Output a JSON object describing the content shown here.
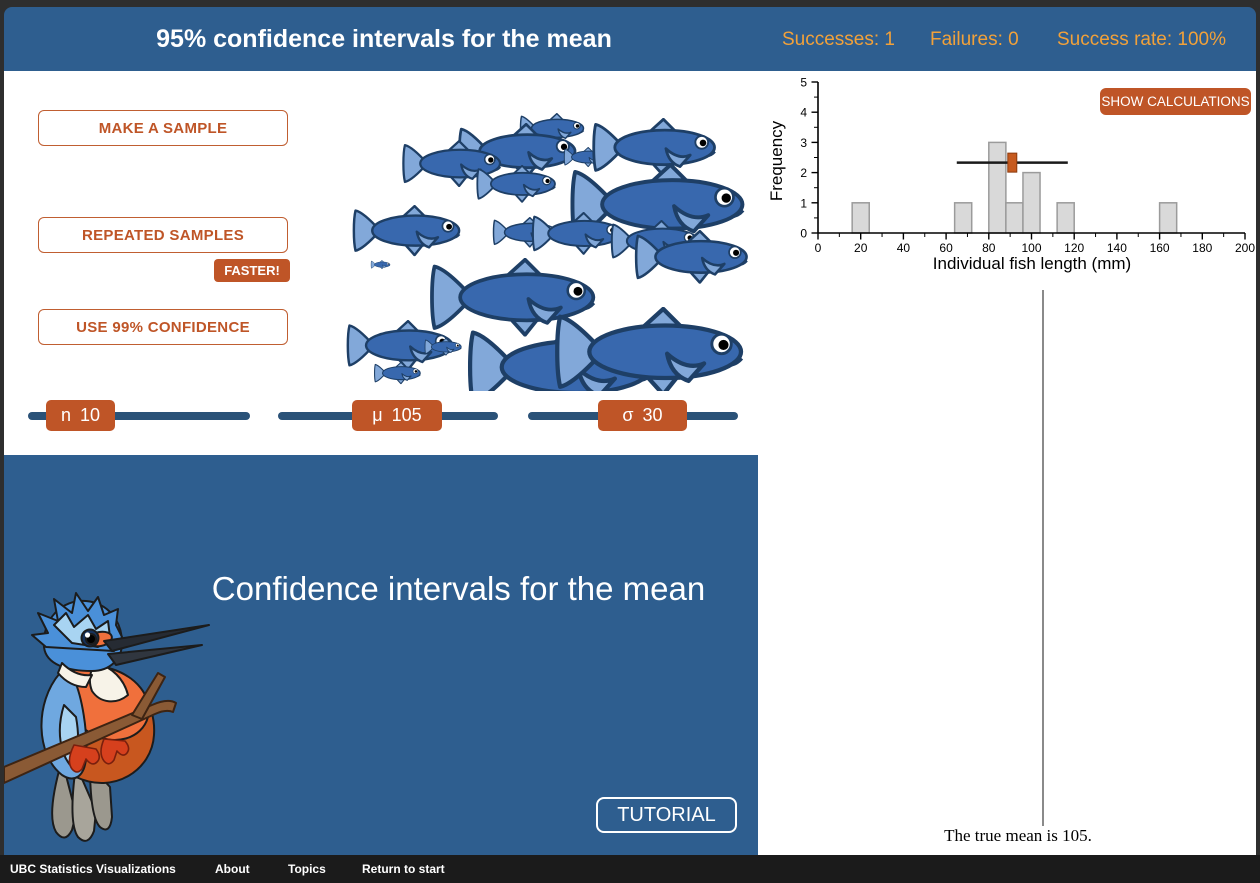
{
  "header": {
    "title": "95% confidence intervals for the mean",
    "successes": "Successes: 1",
    "failures": "Failures: 0",
    "success_rate": "Success rate: 100%"
  },
  "controls": {
    "make_sample_label": "MAKE A SAMPLE",
    "repeated_samples_label": "REPEATED SAMPLES",
    "faster_label": "FASTER!",
    "use_confidence_label": "USE 99% CONFIDENCE",
    "sliders": [
      {
        "symbol": "n",
        "value": "10"
      },
      {
        "symbol": "μ",
        "value": "105"
      },
      {
        "symbol": "σ",
        "value": "30"
      }
    ]
  },
  "chart": {
    "show_calculations_label": "SHOW CALCULATIONS"
  },
  "chart_data": {
    "type": "bar",
    "title": "",
    "xlabel": "Individual fish length (mm)",
    "ylabel": "Frequency",
    "xlim": [
      0,
      200
    ],
    "ylim": [
      0,
      5
    ],
    "xticks": [
      0,
      20,
      40,
      60,
      80,
      100,
      120,
      140,
      160,
      180,
      200
    ],
    "yticks": [
      0,
      1,
      2,
      3,
      4,
      5
    ],
    "bar_color": "#d9d9d9",
    "bar_edge_color": "#9b9b9b",
    "bars": [
      {
        "x0": 16,
        "x1": 24,
        "frequency": 1
      },
      {
        "x0": 64,
        "x1": 72,
        "frequency": 1
      },
      {
        "x0": 80,
        "x1": 88,
        "frequency": 3
      },
      {
        "x0": 88,
        "x1": 96,
        "frequency": 1
      },
      {
        "x0": 96,
        "x1": 104,
        "frequency": 2
      },
      {
        "x0": 112,
        "x1": 120,
        "frequency": 1
      },
      {
        "x0": 160,
        "x1": 168,
        "frequency": 1
      }
    ],
    "confidence_interval": {
      "low": 65,
      "high": 117,
      "sample_mean": 91,
      "line_y": 2.33,
      "marker_color": "#c65a1e"
    },
    "true_mean_line_x": 105
  },
  "true_mean": {
    "text": "The true mean is 105."
  },
  "info_panel": {
    "title": "Confidence intervals for the mean",
    "tutorial_label": "TUTORIAL"
  },
  "footer": {
    "items": [
      "UBC Statistics Visualizations",
      "About",
      "Topics",
      "Return to start"
    ]
  }
}
